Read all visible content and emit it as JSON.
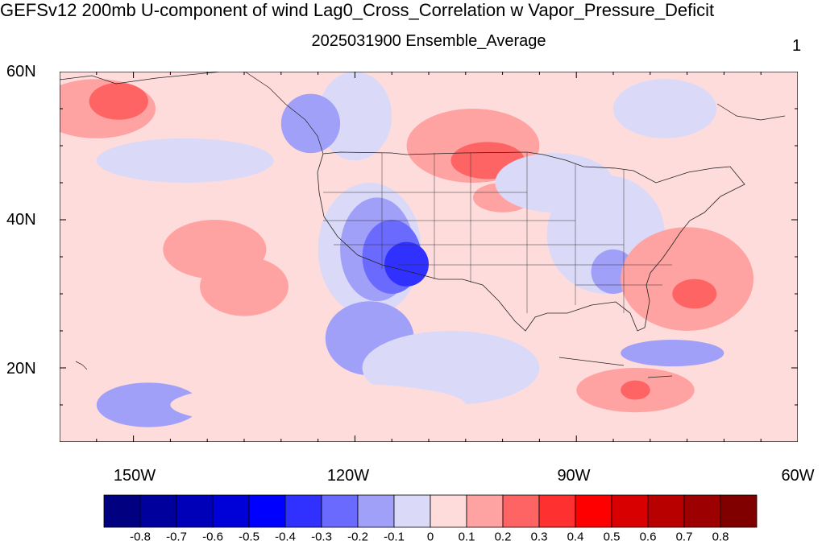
{
  "title": "GEFSv12 200mb U-component of wind Lag0_Cross_Correlation w Vapor_Pressure_Deficit",
  "subtitle": "2025031900 Ensemble_Average",
  "panel_label": "1",
  "lat_labels": [
    "60N",
    "40N",
    "20N"
  ],
  "lon_labels": [
    "150W",
    "120W",
    "90W",
    "60W"
  ],
  "colorbar": {
    "labels": [
      "-0.8",
      "-0.7",
      "-0.6",
      "-0.5",
      "-0.4",
      "-0.3",
      "-0.2",
      "-0.1",
      "0",
      "0.1",
      "0.2",
      "0.3",
      "0.4",
      "0.5",
      "0.6",
      "0.7",
      "0.8"
    ],
    "colors": [
      "#000080",
      "#00009c",
      "#0000b8",
      "#0000d8",
      "#0000ff",
      "#3030ff",
      "#6a6aff",
      "#a0a0f8",
      "#dadaf8",
      "#ffdcdc",
      "#ffa2a2",
      "#ff6464",
      "#ff3030",
      "#ff0000",
      "#d80000",
      "#b80000",
      "#9c0000",
      "#800000"
    ]
  },
  "map": {
    "extent": {
      "lon_min": -160,
      "lon_max": -60,
      "lat_min": 10,
      "lat_max": 60
    },
    "background_color": "#ffdcdc",
    "field": [
      {
        "lon": -155,
        "lat": 55,
        "rx": 8,
        "ry": 4,
        "color": "#ffa2a2"
      },
      {
        "lon": -152,
        "lat": 56,
        "rx": 4,
        "ry": 2.5,
        "color": "#ff6464"
      },
      {
        "lon": -120,
        "lat": 54,
        "rx": 5,
        "ry": 6,
        "color": "#dadaf8"
      },
      {
        "lon": -126,
        "lat": 53,
        "rx": 4,
        "ry": 4,
        "color": "#a0a0f8"
      },
      {
        "lon": -104,
        "lat": 50,
        "rx": 9,
        "ry": 5,
        "color": "#ffa2a2"
      },
      {
        "lon": -102,
        "lat": 48,
        "rx": 5,
        "ry": 2.5,
        "color": "#ff6464"
      },
      {
        "lon": -100,
        "lat": 43,
        "rx": 4,
        "ry": 2,
        "color": "#ffa2a2"
      },
      {
        "lon": -118,
        "lat": 36,
        "rx": 7,
        "ry": 9,
        "color": "#dadaf8"
      },
      {
        "lon": -117,
        "lat": 36,
        "rx": 5,
        "ry": 7,
        "color": "#a0a0f8"
      },
      {
        "lon": -115,
        "lat": 35,
        "rx": 4,
        "ry": 5,
        "color": "#6a6aff"
      },
      {
        "lon": -113,
        "lat": 34,
        "rx": 3,
        "ry": 3,
        "color": "#3030ff"
      },
      {
        "lon": -118,
        "lat": 24,
        "rx": 6,
        "ry": 5,
        "color": "#a0a0f8"
      },
      {
        "lon": -86,
        "lat": 38,
        "rx": 8,
        "ry": 8,
        "color": "#dadaf8"
      },
      {
        "lon": -85,
        "lat": 33,
        "rx": 3,
        "ry": 3,
        "color": "#a0a0f8"
      },
      {
        "lon": -75,
        "lat": 32,
        "rx": 9,
        "ry": 7,
        "color": "#ffa2a2"
      },
      {
        "lon": -74,
        "lat": 30,
        "rx": 3,
        "ry": 2,
        "color": "#ff6464"
      },
      {
        "lon": -139,
        "lat": 36,
        "rx": 7,
        "ry": 4,
        "color": "#ffa2a2"
      },
      {
        "lon": -135,
        "lat": 31,
        "rx": 6,
        "ry": 4,
        "color": "#ffa2a2"
      },
      {
        "lon": -148,
        "lat": 15,
        "rx": 7,
        "ry": 3,
        "color": "#a0a0f8"
      },
      {
        "lon": -82,
        "lat": 17,
        "rx": 8,
        "ry": 3,
        "color": "#ffa2a2"
      },
      {
        "lon": -82,
        "lat": 17,
        "rx": 2,
        "ry": 1.3,
        "color": "#ff6464"
      },
      {
        "lon": -77,
        "lat": 22,
        "rx": 7,
        "ry": 1.8,
        "color": "#a0a0f8"
      },
      {
        "lon": -78,
        "lat": 55,
        "rx": 7,
        "ry": 4,
        "color": "#dadaf8"
      },
      {
        "lon": -93,
        "lat": 45,
        "rx": 8,
        "ry": 4,
        "color": "#dadaf8"
      },
      {
        "lon": -143,
        "lat": 48,
        "rx": 12,
        "ry": 3,
        "color": "#dadaf8"
      },
      {
        "lon": -107,
        "lat": 20,
        "rx": 12,
        "ry": 5,
        "color": "#dadaf8"
      },
      {
        "lon": -125,
        "lat": 15,
        "rx": 20,
        "ry": 3,
        "color": "#ffdcdc"
      }
    ]
  }
}
